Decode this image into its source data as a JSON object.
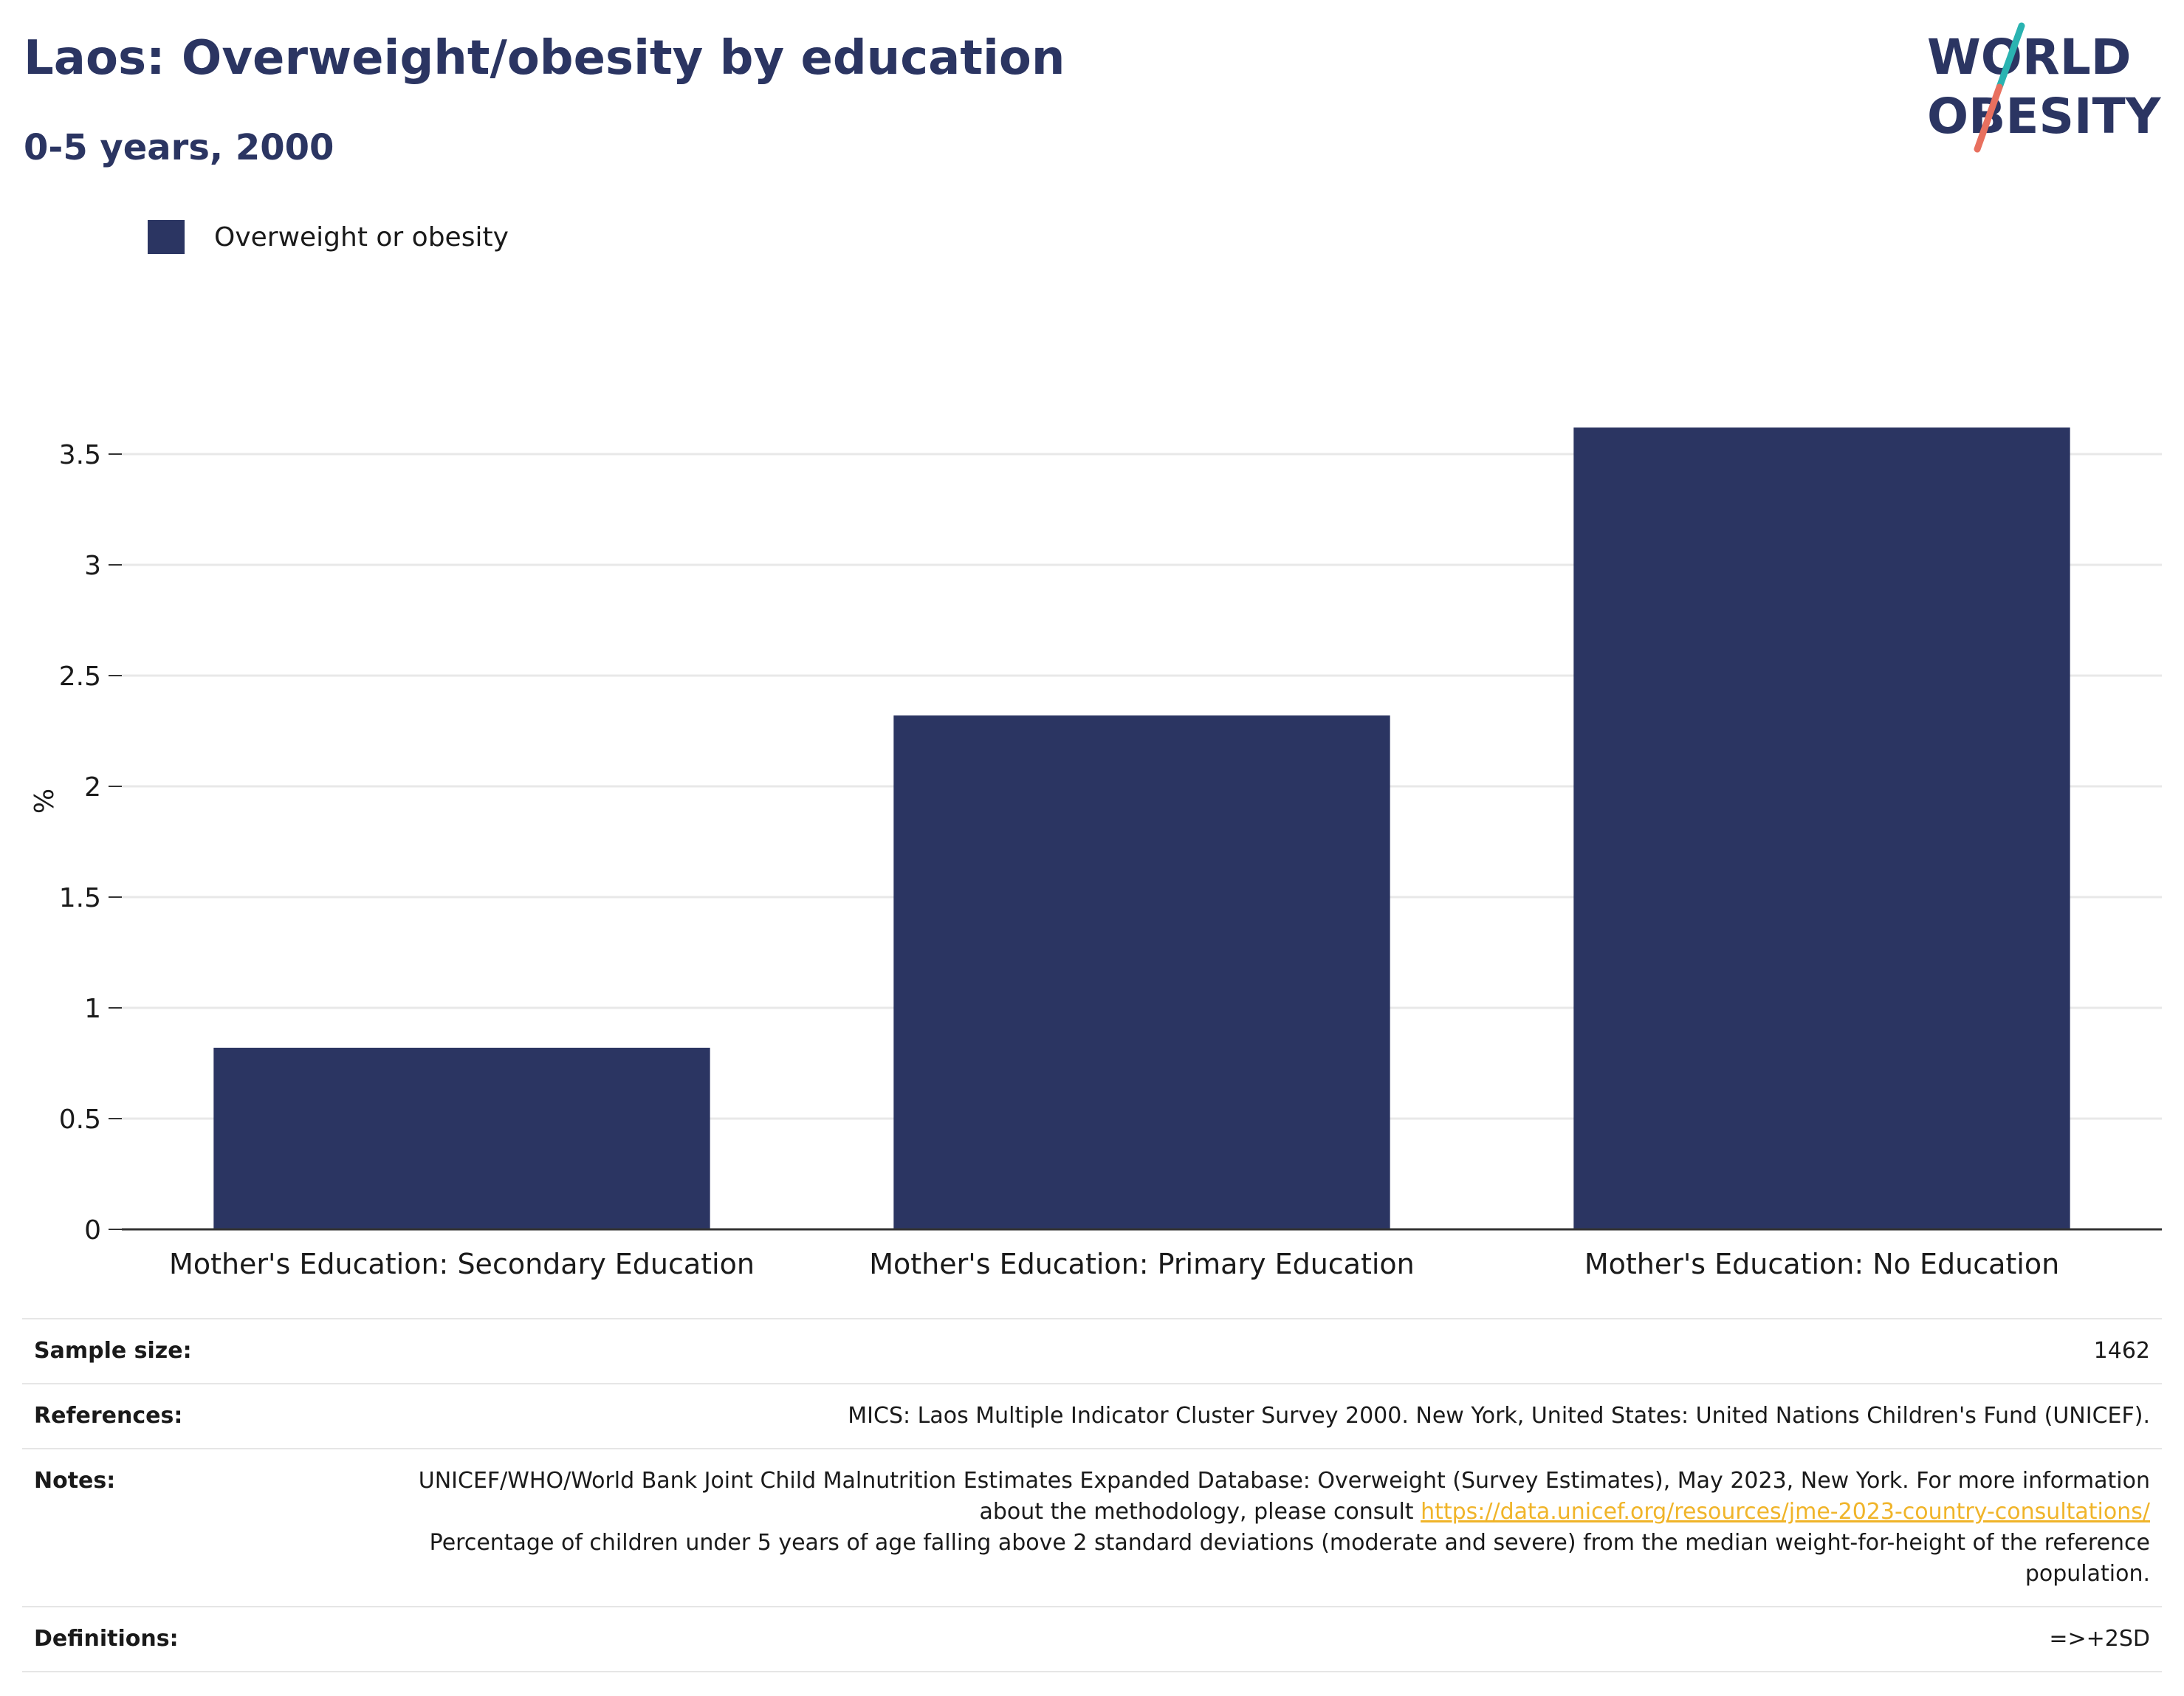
{
  "header": {
    "title": "Laos: Overweight/obesity by education",
    "subtitle": "0-5 years, 2000"
  },
  "logo": {
    "line1": "WORLD",
    "line2": "OBESITY",
    "colors": {
      "text": "#2b3562",
      "slash_top": "#2ab3b1",
      "slash_bottom": "#e8705f"
    }
  },
  "chart_data": {
    "type": "bar",
    "categories": [
      "Mother's Education: Secondary Education",
      "Mother's Education: Primary Education",
      "Mother's Education: No Education"
    ],
    "series": [
      {
        "name": "Overweight or obesity",
        "values": [
          0.82,
          2.32,
          3.62
        ],
        "color": "#2b3562"
      }
    ],
    "xlabel": "",
    "ylabel": "%",
    "ylim": [
      0,
      3.75
    ],
    "yticks": [
      0,
      0.5,
      1,
      1.5,
      2,
      2.5,
      3,
      3.5
    ],
    "ytick_labels": [
      "0",
      "0.5",
      "1",
      "1.5",
      "2",
      "2.5",
      "3",
      "3.5"
    ],
    "grid": true,
    "legend": "top-left"
  },
  "meta": {
    "sample_size_label": "Sample size:",
    "sample_size_value": "1462",
    "references_label": "References:",
    "references_value": "MICS: Laos Multiple Indicator Cluster Survey 2000. New York, United States: United Nations Children's Fund (UNICEF).",
    "notes_label": "Notes:",
    "notes_text_1": "UNICEF/WHO/World Bank Joint Child Malnutrition Estimates Expanded Database: Overweight (Survey Estimates), May 2023, New York. For more information about the methodology, please consult ",
    "notes_link": "https://data.unicef.org/resources/jme-2023-country-consultations/",
    "notes_text_2": "Percentage of children under 5 years of age falling above 2 standard deviations (moderate and severe) from the median weight-for-height of the reference population.",
    "definitions_label": "Definitions:",
    "definitions_value": "=>+2SD"
  }
}
